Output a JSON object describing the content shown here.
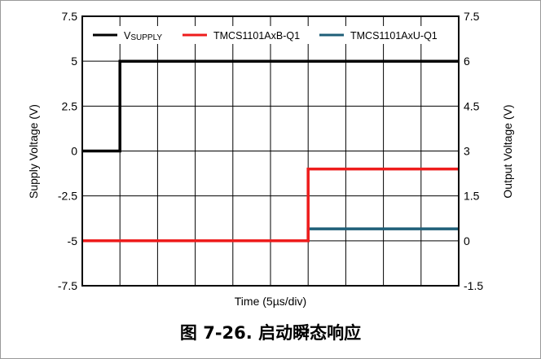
{
  "caption": "图 7-26. 启动瞬态响应",
  "chart_data": {
    "type": "line",
    "xlabel": "Time (5µs/div)",
    "ylabel": "Supply Voltage (V)",
    "y2label": "Output Voltage (V)",
    "ylim": [
      -7.5,
      7.5
    ],
    "y2lim": [
      -1.5,
      7.5
    ],
    "xlim": [
      0,
      50
    ],
    "x_unit_per_div": "5µs",
    "y_ticks": [
      "7.5",
      "5",
      "2.5",
      "0",
      "-2.5",
      "-5",
      "-7.5"
    ],
    "y2_ticks": [
      "7.5",
      "6",
      "4.5",
      "3",
      "1.5",
      "0",
      "-1.5"
    ],
    "grid": true,
    "legend_position": "top",
    "legend": [
      {
        "label": "V",
        "sub": "SUPPLY",
        "color": "#000000"
      },
      {
        "label": "TMCS1101AxB-Q1",
        "color": "#ee1c1c"
      },
      {
        "label": "TMCS1101AxU-Q1",
        "color": "#1f5f78"
      }
    ],
    "series": [
      {
        "name": "VSUPPLY",
        "axis": "left",
        "color": "#000000",
        "x": [
          0,
          5,
          5,
          50
        ],
        "y": [
          0,
          0,
          5,
          5
        ]
      },
      {
        "name": "TMCS1101AxB-Q1",
        "axis": "right",
        "color": "#ee1c1c",
        "x": [
          0,
          30,
          30,
          50
        ],
        "y": [
          0,
          0,
          2.4,
          2.4
        ]
      },
      {
        "name": "TMCS1101AxU-Q1",
        "axis": "right",
        "color": "#1f5f78",
        "x": [
          0,
          30,
          30,
          50
        ],
        "y": [
          0,
          0,
          0.4,
          0.4
        ]
      }
    ]
  }
}
